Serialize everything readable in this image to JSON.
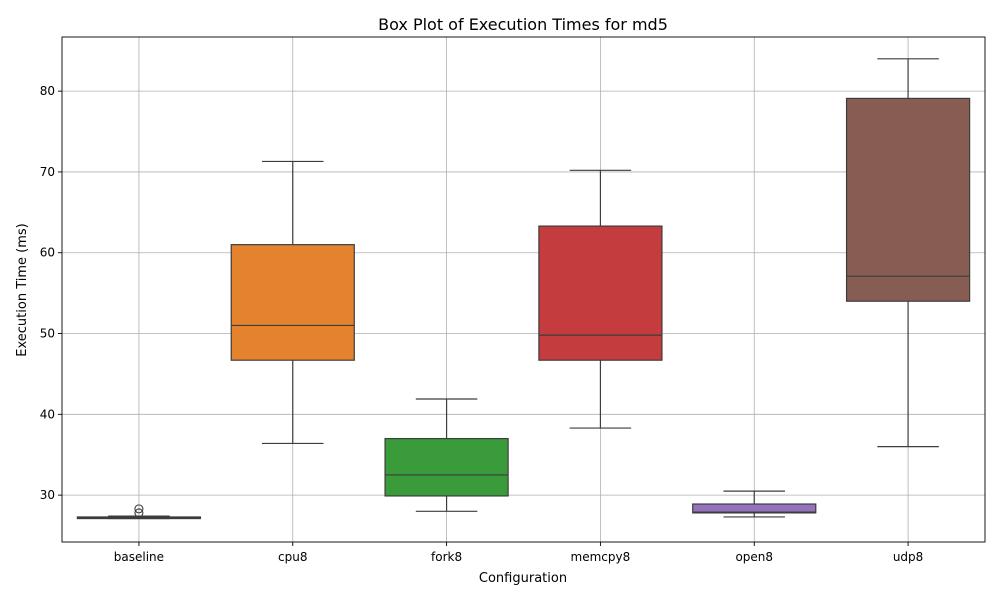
{
  "chart_data": {
    "type": "box",
    "title": "Box Plot of Execution Times for md5",
    "xlabel": "Configuration",
    "ylabel": "Execution Time (ms)",
    "ylim": [
      24.2,
      86.7
    ],
    "yticks": [
      30,
      40,
      50,
      60,
      70,
      80
    ],
    "grid": true,
    "boxes": [
      {
        "category": "baseline",
        "color": "#1f77b4",
        "whisker_low": 27.1,
        "q1": 27.1,
        "median": 27.2,
        "q3": 27.3,
        "whisker_high": 27.4,
        "fliers": [
          27.8,
          28.3
        ]
      },
      {
        "category": "cpu8",
        "color": "#e4822d",
        "whisker_low": 36.4,
        "q1": 46.7,
        "median": 51.0,
        "q3": 61.0,
        "whisker_high": 71.3,
        "fliers": []
      },
      {
        "category": "fork8",
        "color": "#3a9b3b",
        "whisker_low": 28.0,
        "q1": 29.9,
        "median": 32.5,
        "q3": 37.0,
        "whisker_high": 41.9,
        "fliers": []
      },
      {
        "category": "memcpy8",
        "color": "#c43c3d",
        "whisker_low": 38.3,
        "q1": 46.7,
        "median": 49.8,
        "q3": 63.3,
        "whisker_high": 70.2,
        "fliers": []
      },
      {
        "category": "open8",
        "color": "#9472bc",
        "whisker_low": 27.3,
        "q1": 27.8,
        "median": 27.9,
        "q3": 28.9,
        "whisker_high": 30.5,
        "fliers": []
      },
      {
        "category": "udp8",
        "color": "#875c53",
        "whisker_low": 36.0,
        "q1": 54.0,
        "median": 57.1,
        "q3": 79.1,
        "whisker_high": 84.0,
        "fliers": []
      }
    ]
  }
}
